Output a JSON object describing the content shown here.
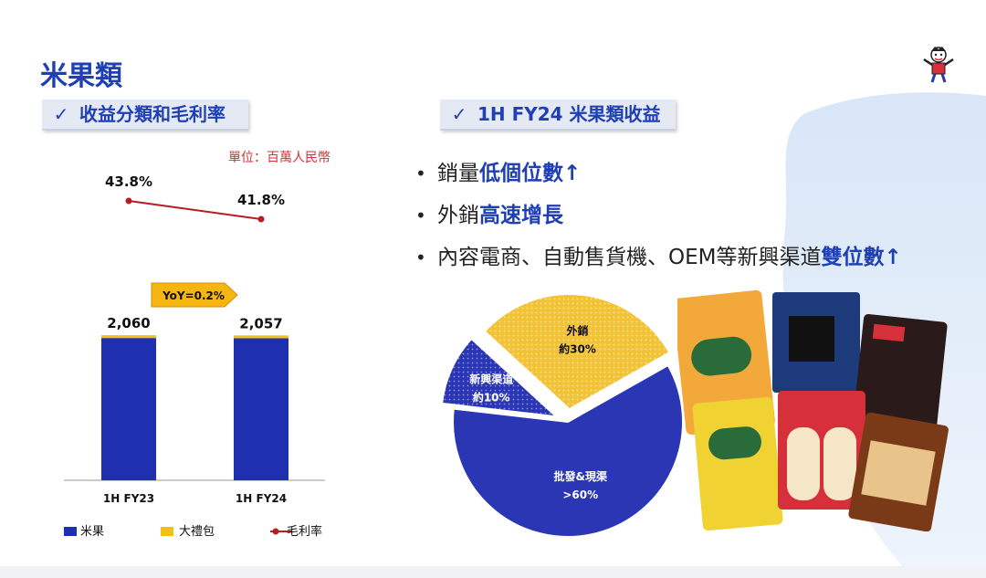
{
  "slide_title": "米果類",
  "left_header": "收益分類和毛利率",
  "right_header": "1H FY24 米果類收益",
  "check_icon": "✓",
  "unit_label": "單位：百萬人民幣",
  "bullets": [
    {
      "dot": "•",
      "prefix": "銷量",
      "highlight": "低個位數↑"
    },
    {
      "dot": "•",
      "prefix": "外銷",
      "highlight": "高速增長"
    },
    {
      "dot": "•",
      "prefix": "內容電商、自動售貨機、OEM等新興渠道",
      "highlight": "雙位數↑"
    }
  ],
  "colors": {
    "brand": "#1f3fb4",
    "bar_main": "#1e2fb0",
    "bar_gift": "#f2c20f",
    "margin_line": "#b81d23",
    "pie_channel": "#2b36b4",
    "pie_new": "#2b36b4",
    "pie_export": "#f2c336"
  },
  "chart_data": [
    {
      "type": "bar",
      "categories": [
        "1H FY23",
        "1H FY24"
      ],
      "series": [
        {
          "name": "米果",
          "values": [
            2020,
            2017
          ]
        },
        {
          "name": "大禮包",
          "values": [
            40,
            40
          ]
        }
      ],
      "totals": [
        2060,
        2057
      ],
      "total_labels": [
        "2,060",
        "2,057"
      ],
      "line_series": {
        "name": "毛利率",
        "values": [
          43.8,
          41.8
        ],
        "labels": [
          "43.8%",
          "41.8%"
        ]
      },
      "annotation": "YoY=0.2%",
      "legend": [
        "米果",
        "大禮包",
        "毛利率"
      ],
      "legend_position": "bottom",
      "ylim": [
        0,
        2800
      ],
      "grid": false
    },
    {
      "type": "pie",
      "slices": [
        {
          "name": "批發&現渠",
          "label": ">60%",
          "value": 60
        },
        {
          "name": "新興渠道",
          "label": "約10%",
          "value": 10
        },
        {
          "name": "外銷",
          "label": "約30%",
          "value": 30
        }
      ]
    }
  ]
}
